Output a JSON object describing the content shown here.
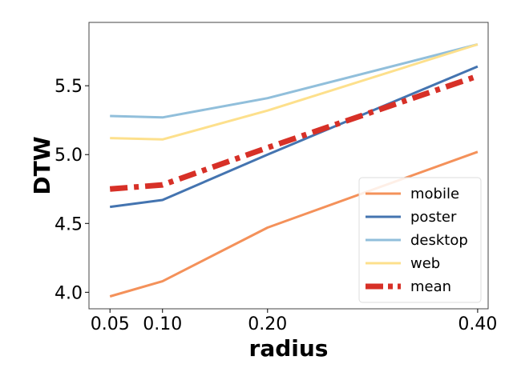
{
  "chart_data": {
    "type": "line",
    "title": "",
    "xlabel": "radius",
    "ylabel": "DTW",
    "x": [
      0.05,
      0.1,
      0.2,
      0.4
    ],
    "x_tick_labels": [
      "0.05",
      "0.10",
      "0.20",
      "0.40"
    ],
    "y_ticks": [
      4.0,
      4.5,
      5.0,
      5.5
    ],
    "y_tick_labels": [
      "4.0",
      "4.5",
      "5.0",
      "5.5"
    ],
    "xlim": [
      0.03,
      0.41
    ],
    "ylim": [
      3.88,
      5.96
    ],
    "grid": false,
    "legend_position": "lower-right",
    "series": [
      {
        "name": "mobile",
        "color": "#f4915a",
        "style": "solid",
        "values": [
          3.97,
          4.08,
          4.47,
          5.02
        ]
      },
      {
        "name": "poster",
        "color": "#4474b0",
        "style": "solid",
        "values": [
          4.62,
          4.67,
          5.0,
          5.64
        ]
      },
      {
        "name": "desktop",
        "color": "#91bfdb",
        "style": "solid",
        "values": [
          5.28,
          5.27,
          5.41,
          5.8
        ]
      },
      {
        "name": "web",
        "color": "#fde08c",
        "style": "solid",
        "values": [
          5.12,
          5.11,
          5.32,
          5.8
        ]
      },
      {
        "name": "mean",
        "color": "#d73027",
        "style": "dashdot",
        "values": [
          4.75,
          4.78,
          5.05,
          5.57
        ]
      }
    ]
  }
}
